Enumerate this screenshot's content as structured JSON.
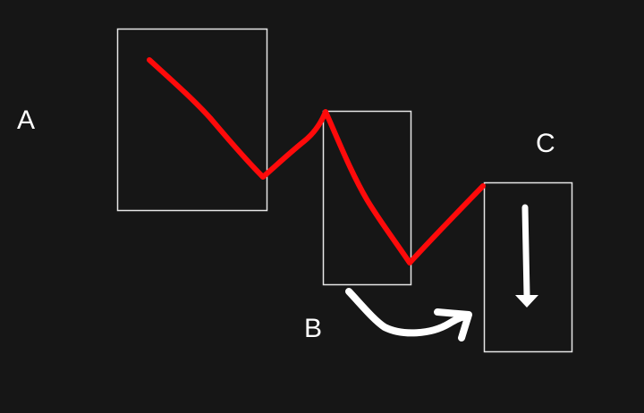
{
  "labels": {
    "a": "A",
    "b": "B",
    "c": "C"
  },
  "colors": {
    "background": "#161616",
    "price_line": "#ff0a0a",
    "box_stroke": "#e6e6e6",
    "arrow": "#ffffff"
  },
  "icons": {
    "curved_arrow": "curved-arrow-icon",
    "down_arrow": "down-arrow-icon"
  }
}
